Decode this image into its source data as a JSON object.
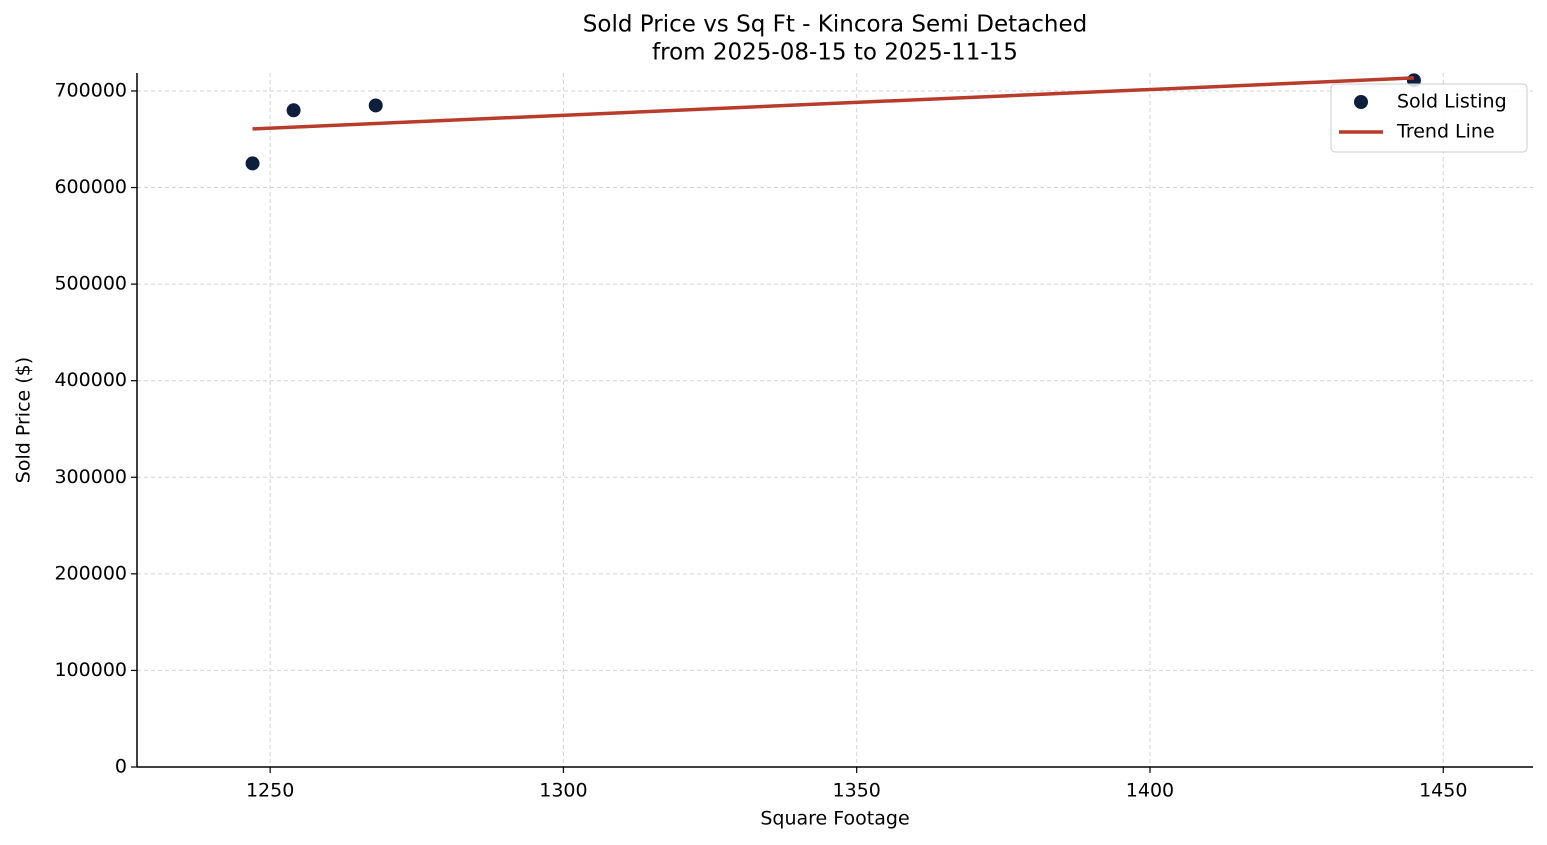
{
  "chart_data": {
    "type": "scatter",
    "title": "Sold Price vs Sq Ft - Kincora Semi Detached",
    "subtitle": "from 2025-08-15 to 2025-11-15",
    "x_label": "Square Footage",
    "y_label": "Sold Price ($)",
    "xlim": [
      1227.3,
      1465.3
    ],
    "xticks": [
      1250,
      1300,
      1350,
      1400,
      1450
    ],
    "ylim": [
      0,
      718600
    ],
    "yticks": [
      0,
      100000,
      200000,
      300000,
      400000,
      500000,
      600000,
      700000
    ],
    "grid": true,
    "legend": "upper right",
    "series": [
      {
        "name": "Sold Listing",
        "type": "scatter",
        "color": "#0d1f3c",
        "x": [
          1247,
          1254,
          1268,
          1445
        ],
        "values": [
          625000,
          680000,
          685000,
          711000
        ]
      },
      {
        "name": "Trend Line",
        "type": "line",
        "color": "#b83c2b",
        "x": [
          1247,
          1445
        ],
        "values": [
          660700,
          713500
        ]
      }
    ]
  }
}
